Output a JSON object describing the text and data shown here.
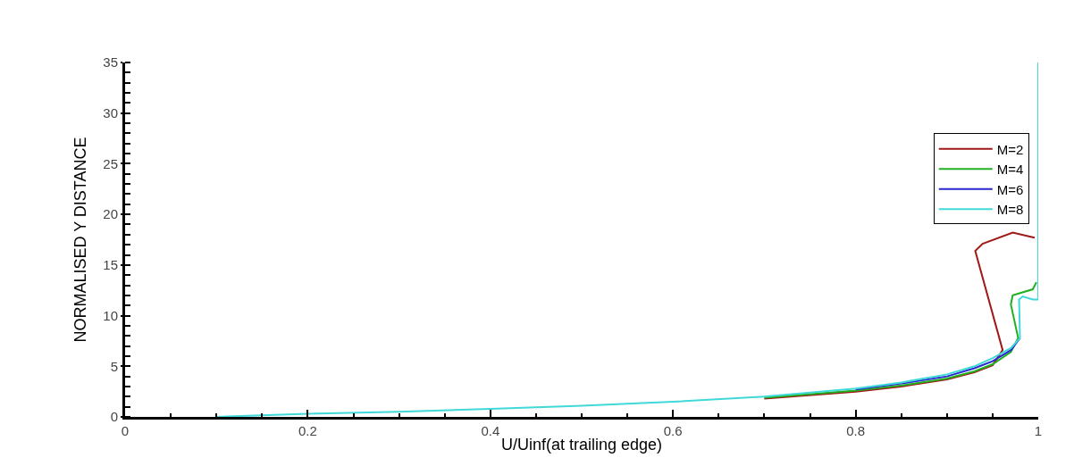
{
  "chart_data": {
    "type": "line",
    "xlabel": "U/Uinf(at trailing edge)",
    "ylabel": "NORMALISED Y DISTANCE",
    "xlim": [
      0,
      1
    ],
    "xticks": [
      0,
      0.2,
      0.4,
      0.6,
      0.8,
      1
    ],
    "ylim": [
      0,
      35
    ],
    "yticks": [
      0,
      5,
      10,
      15,
      20,
      25,
      30,
      35
    ],
    "legend": "top right",
    "line_style": "solid",
    "marker": "none",
    "series": [
      {
        "name": "M=2",
        "color": "#a01818",
        "x": [
          0.7,
          0.8,
          0.85,
          0.9,
          0.93,
          0.95,
          0.961,
          0.931,
          0.939,
          0.972,
          0.996
        ],
        "values": [
          1.8,
          2.5,
          3.0,
          3.7,
          4.4,
          5.1,
          6.6,
          16.4,
          17.1,
          18.2,
          17.7
        ]
      },
      {
        "name": "M=4",
        "color": "#20b020",
        "x": [
          0.7,
          0.8,
          0.85,
          0.9,
          0.93,
          0.95,
          0.97,
          0.978,
          0.97,
          0.972,
          0.994,
          0.998
        ],
        "values": [
          1.9,
          2.6,
          3.1,
          3.8,
          4.5,
          5.2,
          6.4,
          7.8,
          11.1,
          12.0,
          12.6,
          13.3
        ]
      },
      {
        "name": "M=6",
        "color": "#2828d0",
        "x": [
          0.8,
          0.85,
          0.9,
          0.93,
          0.95,
          0.97,
          0.98
        ],
        "values": [
          2.7,
          3.3,
          4.0,
          4.8,
          5.5,
          6.6,
          7.8
        ]
      },
      {
        "name": "M=8",
        "color": "#40d8d8",
        "x": [
          0.1,
          0.2,
          0.3,
          0.4,
          0.5,
          0.6,
          0.7,
          0.8,
          0.85,
          0.9,
          0.93,
          0.95,
          0.97,
          0.98,
          0.979,
          0.983,
          0.994,
          1,
          1
        ],
        "values": [
          0,
          0.3,
          0.5,
          0.8,
          1.1,
          1.5,
          2.0,
          2.8,
          3.4,
          4.2,
          5.0,
          5.8,
          6.8,
          7.8,
          11.6,
          11.9,
          11.6,
          11.6,
          35
        ]
      }
    ]
  }
}
